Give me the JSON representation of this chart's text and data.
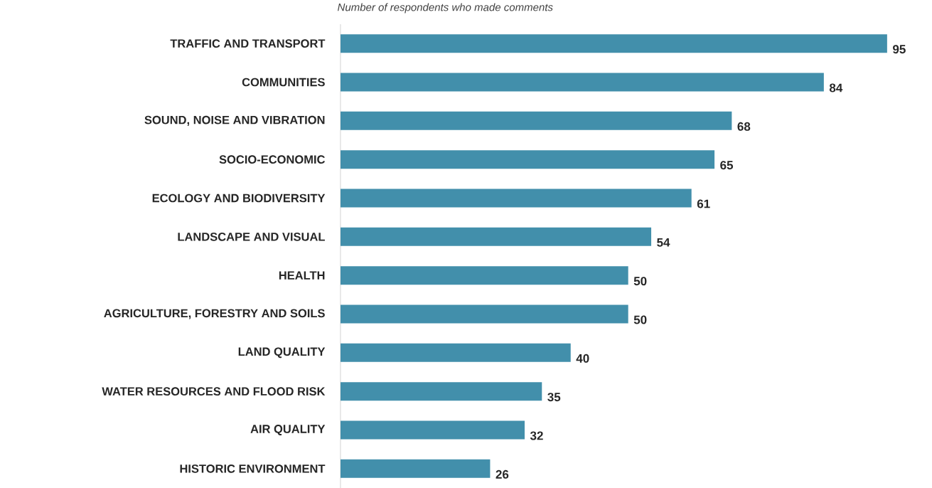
{
  "chart_data": {
    "type": "bar",
    "orientation": "horizontal",
    "title": "Number of respondents who made comments",
    "categories": [
      "TRAFFIC AND TRANSPORT",
      "COMMUNITIES",
      "SOUND, NOISE AND VIBRATION",
      "SOCIO-ECONOMIC",
      "ECOLOGY AND BIODIVERSITY",
      "LANDSCAPE AND VISUAL",
      "HEALTH",
      "AGRICULTURE, FORESTRY AND SOILS",
      "LAND QUALITY",
      "WATER RESOURCES AND FLOOD RISK",
      "AIR QUALITY",
      "HISTORIC ENVIRONMENT"
    ],
    "values": [
      95,
      84,
      68,
      65,
      61,
      54,
      50,
      50,
      40,
      35,
      32,
      26
    ],
    "color": "#428fab",
    "data_labels": true
  }
}
